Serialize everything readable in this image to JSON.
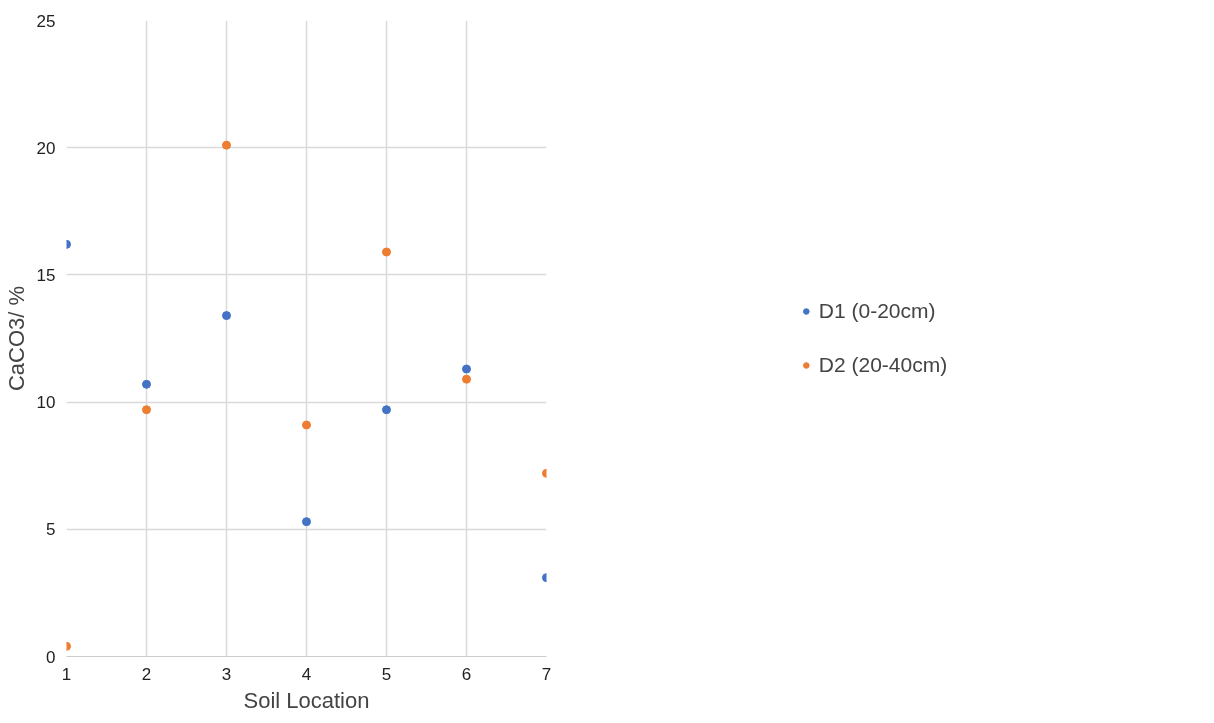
{
  "chart_data": {
    "type": "scatter",
    "xlabel": "Soil Location",
    "ylabel": "CaCO3/ %",
    "x": [
      1,
      2,
      3,
      4,
      5,
      6,
      7
    ],
    "series": [
      {
        "name": "D1 (0-20cm)",
        "color": "#4472c4",
        "values": [
          16.2,
          10.7,
          13.4,
          5.3,
          9.7,
          11.3,
          3.1
        ]
      },
      {
        "name": "D2 (20-40cm)",
        "color": "#ed7d31",
        "values": [
          0.4,
          9.7,
          20.1,
          9.1,
          15.9,
          10.9,
          7.2
        ]
      }
    ],
    "xlim": [
      1,
      7
    ],
    "xticks": [
      1,
      2,
      3,
      4,
      5,
      6,
      7
    ],
    "ylim": [
      0,
      25
    ],
    "yticks": [
      0,
      5,
      10,
      15,
      20,
      25
    ],
    "grid": true,
    "legend": "right",
    "marker": "circle"
  }
}
